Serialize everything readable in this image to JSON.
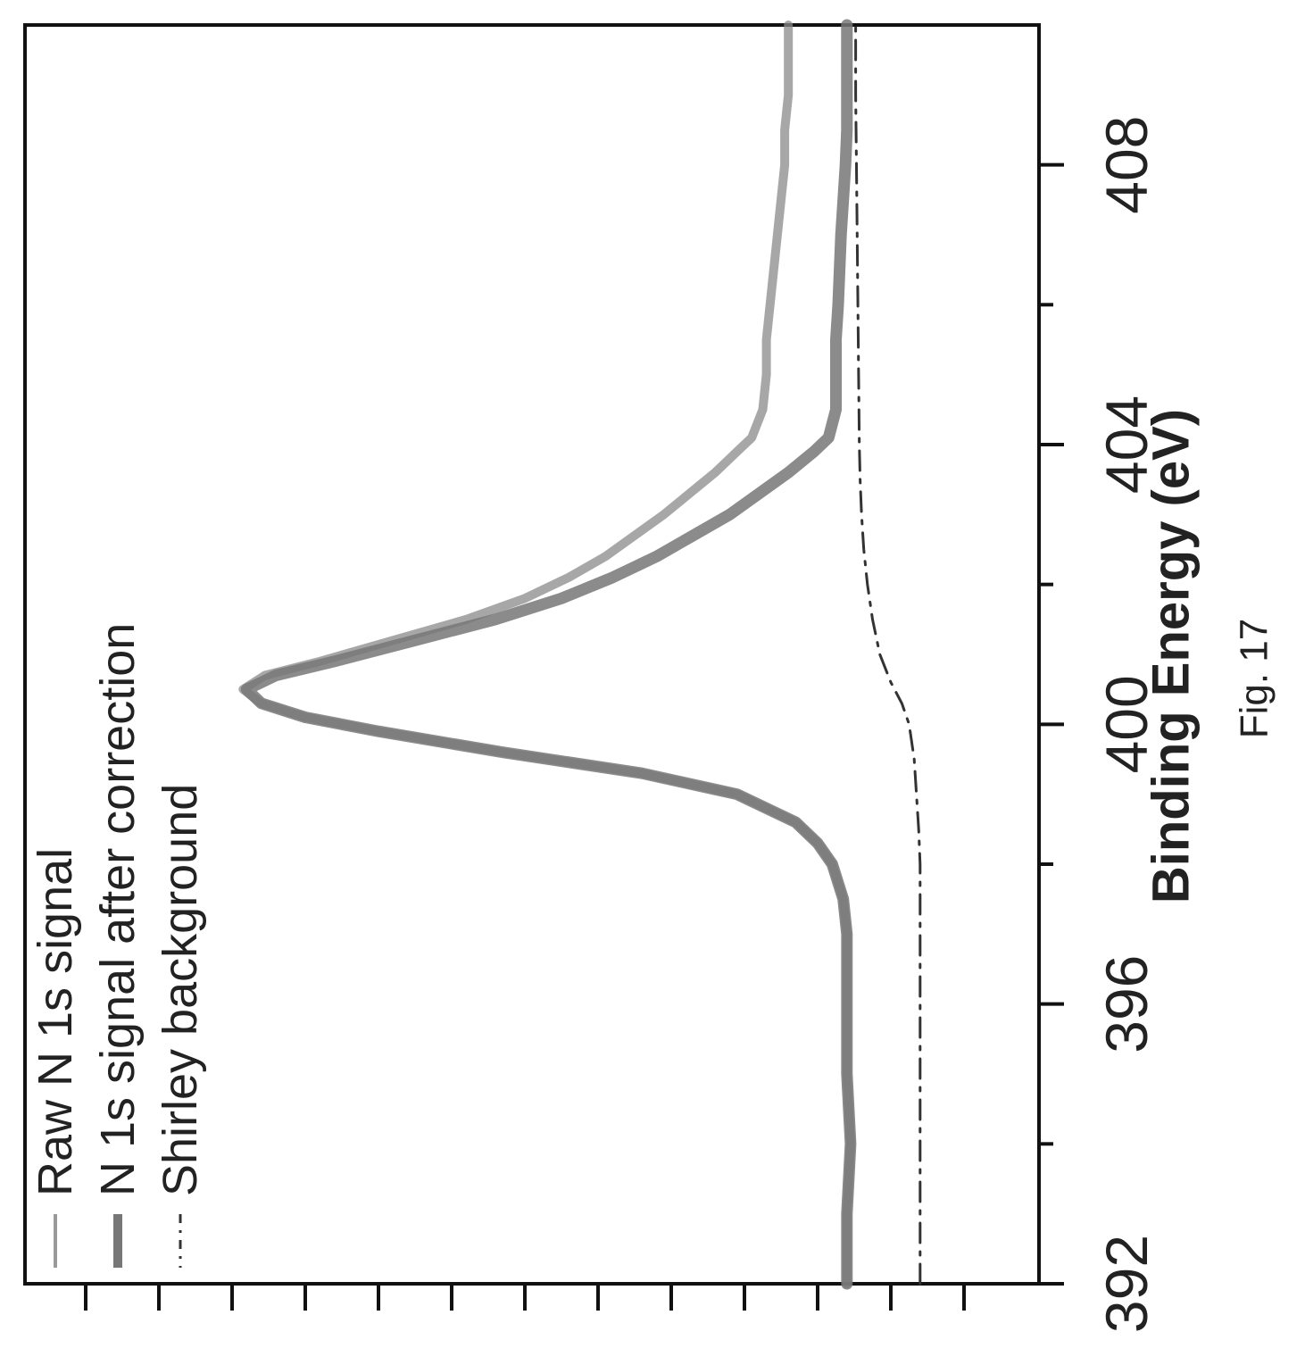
{
  "caption": "Fig. 17",
  "chart_data": {
    "type": "line",
    "xlabel": "Binding Energy (eV)",
    "xlim": [
      392,
      410
    ],
    "x_ticks": [
      392,
      396,
      400,
      404,
      408
    ],
    "x_tick_labels": [
      "392",
      "396",
      "400",
      "404",
      "408"
    ],
    "x_minor_ticks": [
      394,
      398,
      402,
      406
    ],
    "y_ticks": [
      0,
      1,
      2,
      3,
      4,
      5,
      6,
      7,
      8,
      9,
      10,
      11,
      12,
      13
    ],
    "ylim": [
      0,
      14
    ],
    "legend_position": "top-left",
    "series": [
      {
        "name": "Raw N 1s signal",
        "style": "solid-thin",
        "color": "#8a8a8a",
        "x": [
          392,
          393,
          394,
          395,
          396,
          397,
          397.5,
          398,
          398.3,
          398.6,
          399,
          399.3,
          399.6,
          399.9,
          400.1,
          400.3,
          400.5,
          400.7,
          400.9,
          401.2,
          401.5,
          401.8,
          402.1,
          402.4,
          402.7,
          403,
          403.3,
          403.6,
          403.9,
          404.1,
          404.5,
          405,
          405.5,
          406,
          406.5,
          407,
          407.5,
          408,
          408.5,
          409,
          409.5,
          410
        ],
        "y": [
          1.6,
          1.6,
          1.55,
          1.6,
          1.6,
          1.6,
          1.65,
          1.8,
          2.0,
          2.3,
          3.1,
          4.4,
          6.3,
          8.0,
          9.0,
          9.6,
          9.85,
          9.55,
          8.8,
          7.8,
          6.8,
          6.0,
          5.4,
          4.9,
          4.5,
          4.1,
          3.75,
          3.4,
          3.1,
          2.9,
          2.75,
          2.7,
          2.7,
          2.65,
          2.6,
          2.55,
          2.5,
          2.45,
          2.45,
          2.4,
          2.4,
          2.4
        ]
      },
      {
        "name": "N 1s signal after correction",
        "style": "solid-thick",
        "color": "#777777",
        "x": [
          392,
          393,
          394,
          395,
          396,
          397,
          397.5,
          398,
          398.3,
          398.6,
          399,
          399.3,
          399.6,
          399.9,
          400.1,
          400.3,
          400.5,
          400.7,
          400.9,
          401.2,
          401.5,
          401.8,
          402.1,
          402.4,
          402.7,
          403,
          403.3,
          403.6,
          403.9,
          404.1,
          404.5,
          405,
          405.5,
          406,
          406.5,
          407,
          407.5,
          408,
          408.5,
          409,
          409.5,
          410
        ],
        "y": [
          1.6,
          1.6,
          1.55,
          1.6,
          1.6,
          1.6,
          1.65,
          1.8,
          2.0,
          2.3,
          3.1,
          4.4,
          6.3,
          8.0,
          9.0,
          9.6,
          9.8,
          9.4,
          8.6,
          7.5,
          6.4,
          5.5,
          4.8,
          4.2,
          3.7,
          3.2,
          2.8,
          2.4,
          2.05,
          1.85,
          1.75,
          1.75,
          1.75,
          1.72,
          1.7,
          1.68,
          1.65,
          1.62,
          1.6,
          1.6,
          1.6,
          1.6
        ]
      },
      {
        "name": "Shirley background",
        "style": "dash-dot",
        "color": "#333333",
        "x": [
          392,
          393,
          394,
          395,
          396,
          397,
          398,
          398.5,
          399,
          399.5,
          400,
          400.3,
          400.6,
          401,
          401.5,
          402,
          402.5,
          403,
          403.5,
          404,
          405,
          406,
          407,
          408,
          409,
          410
        ],
        "y": [
          0.6,
          0.6,
          0.6,
          0.6,
          0.6,
          0.6,
          0.6,
          0.62,
          0.65,
          0.68,
          0.75,
          0.85,
          1.0,
          1.15,
          1.25,
          1.32,
          1.37,
          1.4,
          1.42,
          1.43,
          1.44,
          1.45,
          1.46,
          1.47,
          1.48,
          1.48
        ]
      }
    ]
  }
}
